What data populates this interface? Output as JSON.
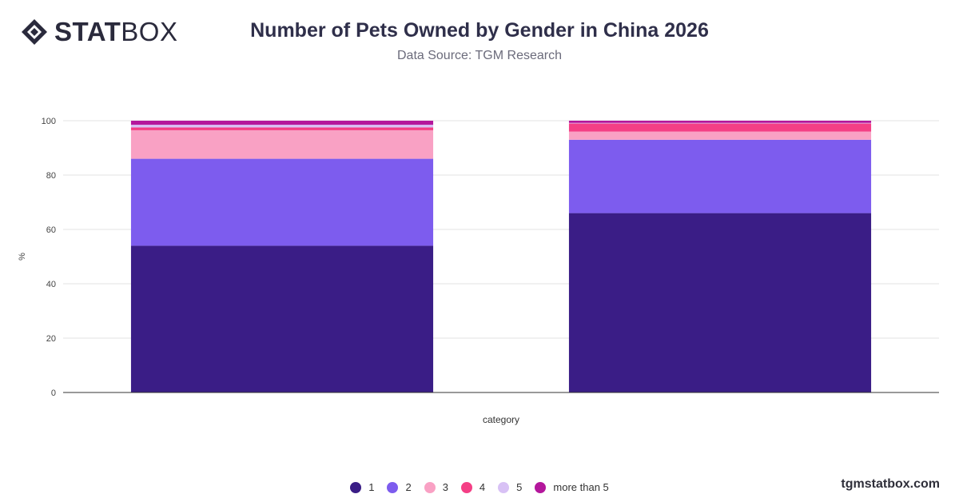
{
  "brand": {
    "logo_bold": "STAT",
    "logo_light": "BOX",
    "watermark": "tgmstatbox.com"
  },
  "chart_data": {
    "type": "bar",
    "stacked": true,
    "title": "Number of Pets Owned by Gender in China 2026",
    "subtitle": "Data Source: TGM Research",
    "xlabel": "category",
    "ylabel": "%",
    "ylim": [
      0,
      100
    ],
    "yticks": [
      "0",
      "20",
      "40",
      "60",
      "80",
      "100"
    ],
    "grid": true,
    "legend_position": "bottom",
    "categories": [
      "",
      ""
    ],
    "series": [
      {
        "name": "1",
        "color": "#3a1d86",
        "values": [
          54,
          66
        ]
      },
      {
        "name": "2",
        "color": "#7d5cee",
        "values": [
          32,
          27
        ]
      },
      {
        "name": "3",
        "color": "#f9a1c4",
        "values": [
          10.5,
          3
        ]
      },
      {
        "name": "4",
        "color": "#f43f85",
        "values": [
          1,
          3
        ]
      },
      {
        "name": "5",
        "color": "#d8c1f5",
        "values": [
          1,
          0.2
        ]
      },
      {
        "name": "more than 5",
        "color": "#b4179c",
        "values": [
          1.5,
          0.8
        ]
      }
    ]
  }
}
